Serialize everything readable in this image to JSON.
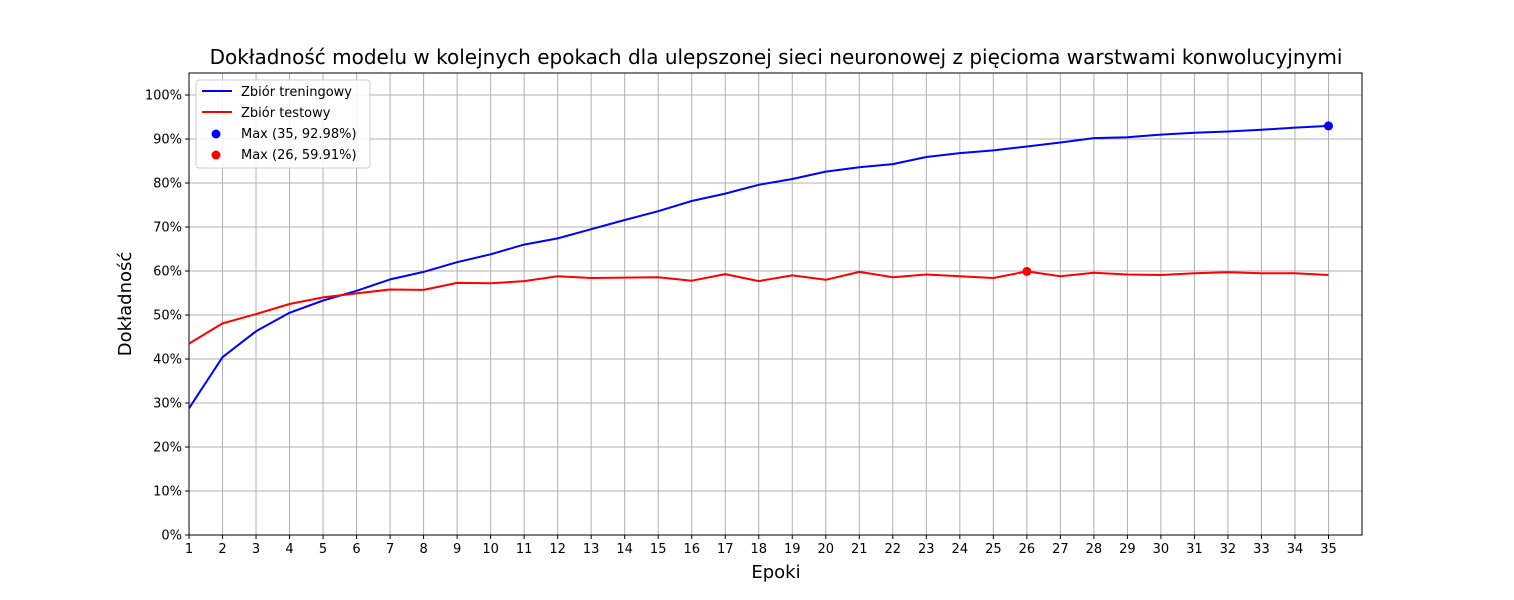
{
  "chart_data": {
    "type": "line",
    "title": "Dokładność modelu w kolejnych epokach dla ulepszonej sieci neuronowej z pięcioma warstwami konwolucyjnymi",
    "xlabel": "Epoki",
    "ylabel": "Dokładność",
    "x": [
      1,
      2,
      3,
      4,
      5,
      6,
      7,
      8,
      9,
      10,
      11,
      12,
      13,
      14,
      15,
      16,
      17,
      18,
      19,
      20,
      21,
      22,
      23,
      24,
      25,
      26,
      27,
      28,
      29,
      30,
      31,
      32,
      33,
      34,
      35
    ],
    "xticks": [
      "1",
      "2",
      "3",
      "4",
      "5",
      "6",
      "7",
      "8",
      "9",
      "10",
      "11",
      "12",
      "13",
      "14",
      "15",
      "16",
      "17",
      "18",
      "19",
      "20",
      "21",
      "22",
      "23",
      "24",
      "25",
      "26",
      "27",
      "28",
      "29",
      "30",
      "31",
      "32",
      "33",
      "34",
      "35"
    ],
    "xlim": [
      1,
      36
    ],
    "ylim": [
      0,
      105
    ],
    "yticks": [
      "0%",
      "10%",
      "20%",
      "30%",
      "40%",
      "50%",
      "60%",
      "70%",
      "80%",
      "90%",
      "100%"
    ],
    "grid": true,
    "legend_position": "top-left",
    "series": [
      {
        "name": "Zbiór treningowy",
        "color": "#0000ff",
        "values": [
          28.8,
          40.4,
          46.3,
          50.5,
          53.3,
          55.5,
          58.1,
          59.8,
          62.0,
          63.8,
          66.0,
          67.4,
          69.5,
          71.6,
          73.6,
          75.9,
          77.6,
          79.6,
          80.9,
          82.6,
          83.6,
          84.3,
          85.9,
          86.8,
          87.4,
          88.3,
          89.2,
          90.2,
          90.4,
          91.0,
          91.4,
          91.7,
          92.1,
          92.6,
          92.98
        ]
      },
      {
        "name": "Zbiór testowy",
        "color": "#ff0000",
        "values": [
          43.5,
          48.1,
          50.2,
          52.5,
          54.0,
          54.9,
          55.8,
          55.7,
          57.3,
          57.2,
          57.7,
          58.8,
          58.4,
          58.5,
          58.6,
          57.8,
          59.3,
          57.7,
          59.0,
          58.0,
          59.8,
          58.6,
          59.2,
          58.8,
          58.4,
          59.91,
          58.8,
          59.6,
          59.2,
          59.1,
          59.5,
          59.7,
          59.5,
          59.5,
          59.1
        ]
      }
    ],
    "markers": [
      {
        "label": "Max (35, 92.98%)",
        "x": 35,
        "y": 92.98,
        "color": "#0000ff"
      },
      {
        "label": "Max (26, 59.91%)",
        "x": 26,
        "y": 59.91,
        "color": "#ff0000"
      }
    ]
  }
}
